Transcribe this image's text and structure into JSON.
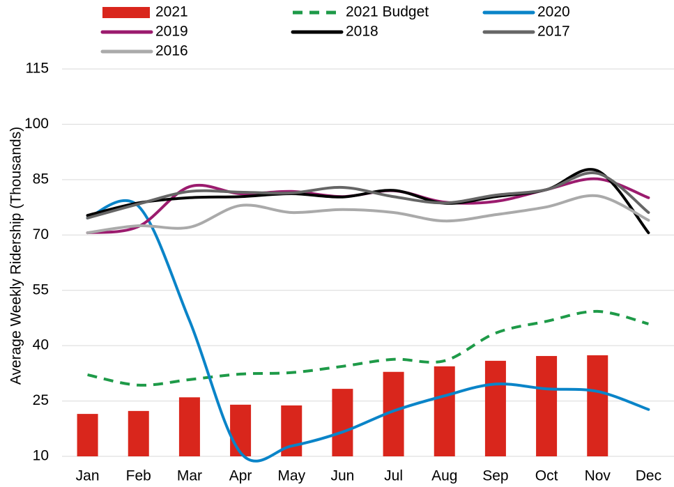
{
  "chart_data": {
    "type": "combo",
    "y_label": "Average Weekly Ridership (Thousands)",
    "categories": [
      "Jan",
      "Feb",
      "Mar",
      "Apr",
      "May",
      "Jun",
      "Jul",
      "Aug",
      "Sep",
      "Oct",
      "Nov",
      "Dec"
    ],
    "ylim": [
      10,
      115
    ],
    "yticks": [
      10,
      25,
      40,
      55,
      70,
      85,
      100,
      115
    ],
    "grid": true,
    "legend": "top",
    "series": [
      {
        "name": "2021",
        "type": "bar",
        "color": "#d9261c",
        "values": [
          21.5,
          22.3,
          26,
          24,
          23.8,
          28.3,
          32.9,
          34.4,
          35.9,
          37.2,
          37.4,
          null
        ]
      },
      {
        "name": "2021 Budget",
        "type": "line",
        "dashed": true,
        "color": "#1e9a48",
        "values": [
          32.1,
          29.3,
          30.8,
          32.3,
          32.7,
          34.4,
          36.3,
          35.9,
          43.4,
          46.6,
          49.3,
          45.9
        ]
      },
      {
        "name": "2020",
        "type": "line",
        "color": "#0a84c8",
        "values": [
          74.6,
          77.8,
          46.8,
          11,
          12.8,
          16.6,
          22.3,
          26.4,
          29.6,
          28.3,
          27.6,
          22.7
        ]
      },
      {
        "name": "2019",
        "type": "line",
        "color": "#9b1b6e",
        "values": [
          70.6,
          72.3,
          83.1,
          81.2,
          81.8,
          80.4,
          82,
          78.9,
          79.1,
          82.3,
          85.2,
          80.1
        ]
      },
      {
        "name": "2018",
        "type": "line",
        "color": "#000000",
        "values": [
          75.3,
          78.7,
          80.1,
          80.4,
          81.2,
          80.3,
          82.1,
          78.6,
          80.4,
          82.3,
          87.4,
          70.6
        ]
      },
      {
        "name": "2017",
        "type": "line",
        "color": "#666666",
        "values": [
          74.6,
          78.4,
          81.8,
          81.6,
          81.4,
          82.9,
          80.4,
          78.7,
          80.8,
          82.3,
          86.7,
          76.1
        ]
      },
      {
        "name": "2016",
        "type": "line",
        "color": "#aaaaaa",
        "values": [
          70.6,
          72.5,
          72.1,
          78,
          76.1,
          76.9,
          76.1,
          73.8,
          75.5,
          77.6,
          80.6,
          74
        ]
      }
    ]
  }
}
